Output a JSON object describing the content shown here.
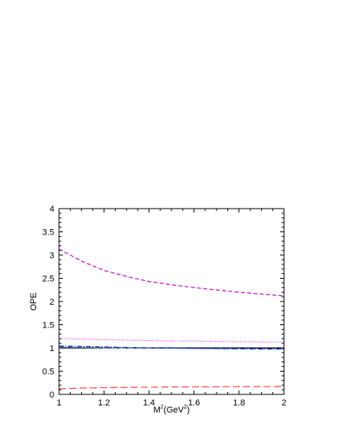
{
  "chart_data": {
    "type": "line",
    "title": "",
    "xlabel": "M",
    "xlabel_sup": "2",
    "xlabel_tail": "(GeV",
    "xlabel_tail_sup": "2",
    "xlabel_end": ")",
    "ylabel": "OPE",
    "xlim": [
      1,
      2
    ],
    "ylim": [
      0,
      4
    ],
    "xticks": [
      "1",
      "1.2",
      "1.4",
      "1.6",
      "1.8",
      "2"
    ],
    "yticks": [
      "0",
      "0.5",
      "1",
      "1.5",
      "2",
      "2.5",
      "3",
      "3.5",
      "4"
    ],
    "grid": false,
    "legend": "none",
    "x": [
      1.0,
      1.1,
      1.2,
      1.3,
      1.4,
      1.5,
      1.6,
      1.7,
      1.8,
      1.9,
      2.0
    ],
    "series": [
      {
        "color": "#cc00cc",
        "dash": "5,3",
        "width": 1.2,
        "values": [
          3.13,
          2.87,
          2.67,
          2.54,
          2.43,
          2.36,
          2.3,
          2.25,
          2.2,
          2.16,
          2.12
        ]
      },
      {
        "color": "#ff00ff",
        "dash": "1.2,2",
        "width": 1.0,
        "values": [
          1.21,
          1.19,
          1.18,
          1.17,
          1.16,
          1.15,
          1.15,
          1.14,
          1.14,
          1.13,
          1.13
        ]
      },
      {
        "color": "#000000",
        "dash": "",
        "width": 1.2,
        "values": [
          1.0,
          1.0,
          1.0,
          1.0,
          1.0,
          1.0,
          1.0,
          1.0,
          1.0,
          1.0,
          1.0
        ]
      },
      {
        "color": "#000080",
        "dash": "6,2,1.5,2",
        "width": 1.2,
        "values": [
          1.04,
          1.03,
          1.02,
          1.01,
          1.0,
          1.0,
          0.995,
          0.99,
          0.99,
          0.985,
          0.98
        ]
      },
      {
        "color": "#4488ff",
        "dash": "8,3",
        "width": 1.0,
        "values": [
          1.02,
          1.01,
          1.0,
          1.0,
          0.995,
          0.99,
          0.985,
          0.98,
          0.975,
          0.97,
          0.97
        ]
      },
      {
        "color": "#ff4444",
        "dash": "9,4",
        "width": 1.2,
        "values": [
          0.12,
          0.135,
          0.145,
          0.15,
          0.155,
          0.16,
          0.162,
          0.165,
          0.167,
          0.168,
          0.17
        ]
      }
    ]
  }
}
